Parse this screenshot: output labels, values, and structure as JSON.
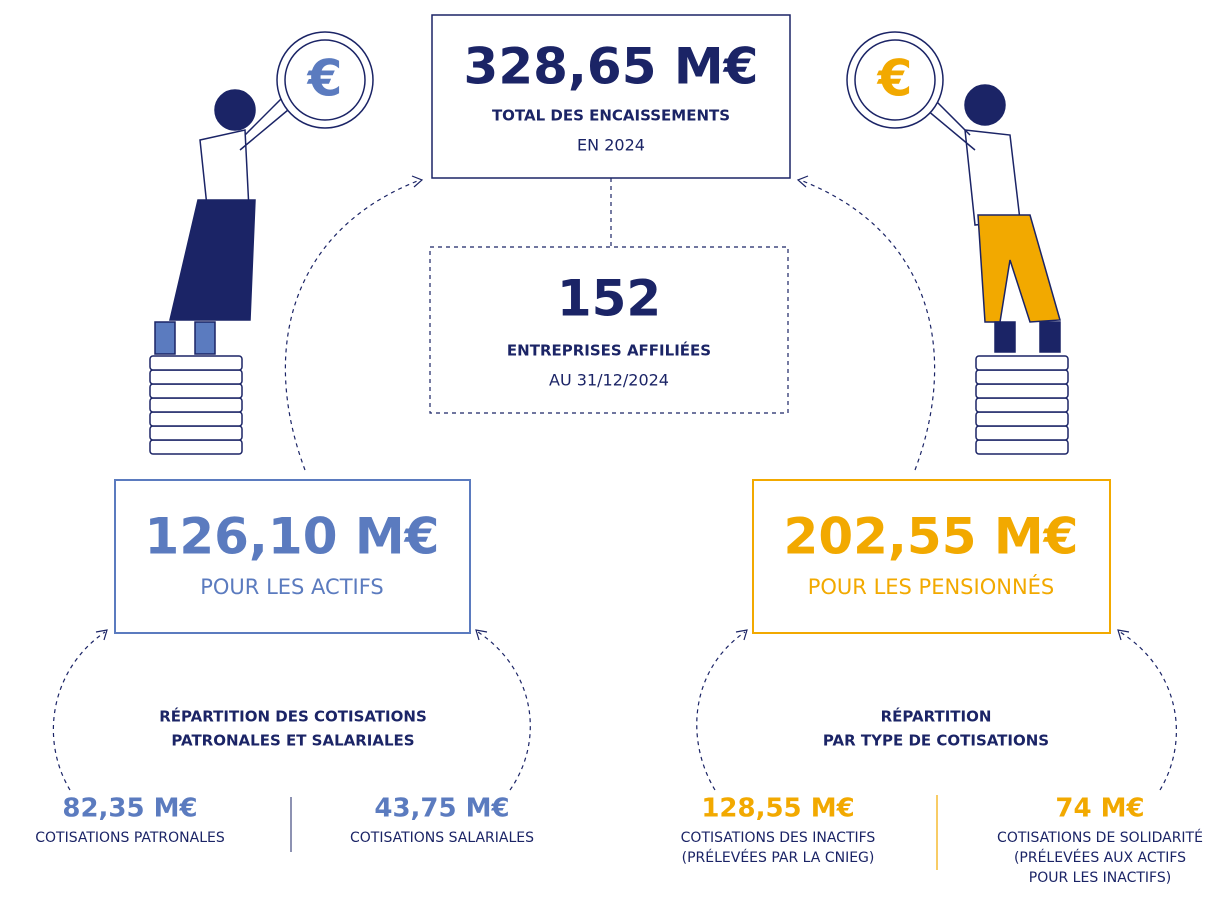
{
  "total": {
    "value": "328,65 M€",
    "label": "TOTAL DES ENCAISSEMENTS",
    "sub": "EN 2024"
  },
  "companies": {
    "value": "152",
    "label": "ENTREPRISES AFFILIÉES",
    "sub": "AU 31/12/2024"
  },
  "active": {
    "value": "126,10 M€",
    "label": "POUR LES ACTIFS",
    "heading": [
      "RÉPARTITION DES COTISATIONS",
      "PATRONALES ET SALARIALES"
    ],
    "items": [
      {
        "value": "82,35 M€",
        "lines": [
          "COTISATIONS PATRONALES"
        ]
      },
      {
        "value": "43,75 M€",
        "lines": [
          "COTISATIONS SALARIALES"
        ]
      }
    ]
  },
  "pensioners": {
    "value": "202,55 M€",
    "label": "POUR LES PENSIONNÉS",
    "heading": [
      "RÉPARTITION",
      "PAR TYPE DE COTISATIONS"
    ],
    "items": [
      {
        "value": "128,55 M€",
        "lines": [
          "COTISATIONS DES INACTIFS",
          "(PRÉLEVÉES PAR LA CNIEG)"
        ]
      },
      {
        "value": "74 M€",
        "lines": [
          "COTISATIONS DE SOLIDARITÉ",
          "(PRÉLEVÉES AUX ACTIFS",
          "POUR LES INACTIFS)"
        ]
      }
    ]
  }
}
